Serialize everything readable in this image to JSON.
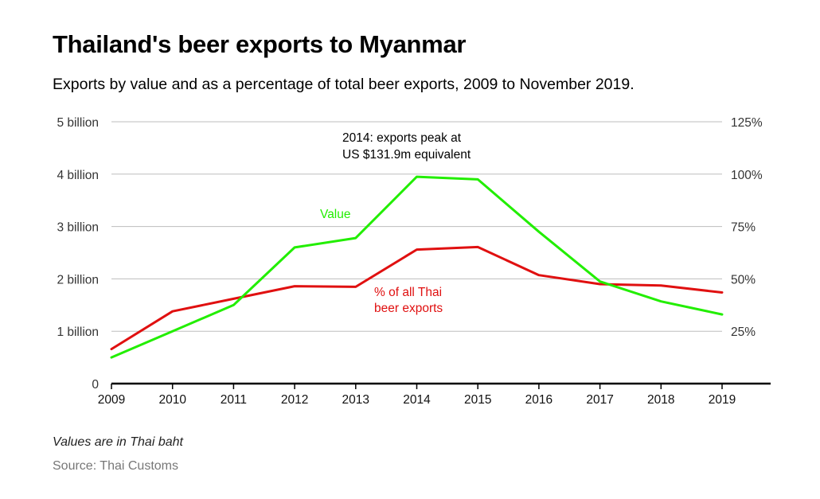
{
  "header": {
    "title": "Thailand's beer exports to Myanmar",
    "subtitle": "Exports by value and as a percentage of total beer exports, 2009 to November 2019."
  },
  "footer": {
    "note": "Values are in Thai baht",
    "source": "Source: Thai Customs"
  },
  "chart_data": {
    "type": "line",
    "x": [
      "2009",
      "2010",
      "2011",
      "2012",
      "2013",
      "2014",
      "2015",
      "2016",
      "2017",
      "2018",
      "2019"
    ],
    "left_axis": {
      "ylim": [
        0,
        5
      ],
      "ticks": [
        0,
        1,
        2,
        3,
        4,
        5
      ],
      "tick_labels": [
        "0",
        "1 billion",
        "2 billion",
        "3 billion",
        "4 billion",
        "5 billion"
      ]
    },
    "right_axis": {
      "ylim": [
        0,
        125
      ],
      "ticks": [
        25,
        50,
        75,
        100,
        125
      ],
      "tick_labels": [
        "25%",
        "50%",
        "75%",
        "100%",
        "125%"
      ]
    },
    "grid": true,
    "series": [
      {
        "name": "Value",
        "axis": "left",
        "color": "#22ee00",
        "values": [
          0.5,
          1.0,
          1.5,
          2.6,
          2.78,
          3.95,
          3.9,
          2.9,
          1.95,
          1.57,
          1.32
        ],
        "label": "Value"
      },
      {
        "name": "% of all Thai beer exports",
        "axis": "right",
        "color": "#e01010",
        "values": [
          16.5,
          34.5,
          40.5,
          46.5,
          46.2,
          64,
          65.2,
          51.8,
          47.5,
          46.8,
          43.5
        ],
        "label_lines": [
          "% of all Thai",
          "beer exports"
        ]
      }
    ],
    "annotations": [
      {
        "lines": [
          "2014: exports peak at",
          "US $131.9m equivalent"
        ]
      }
    ]
  }
}
